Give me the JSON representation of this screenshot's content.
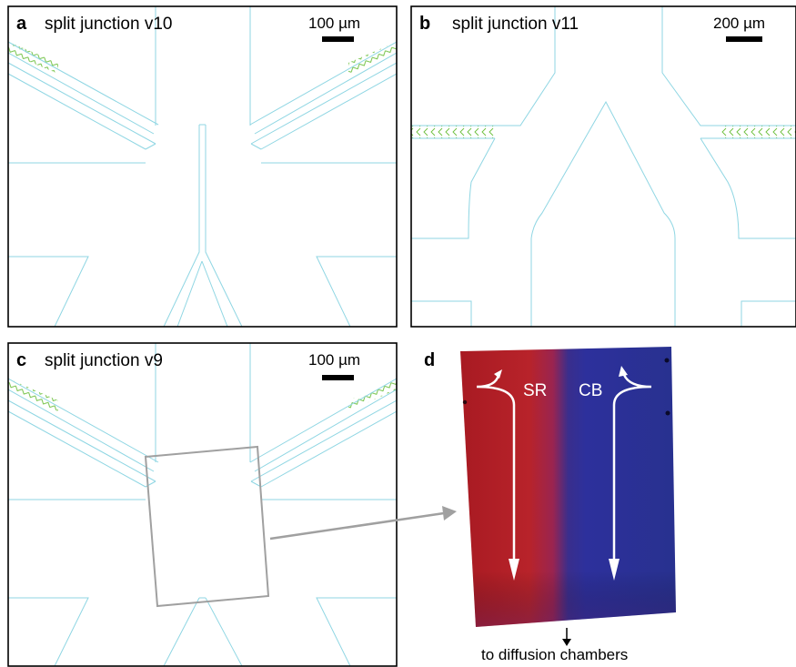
{
  "panels": {
    "a": {
      "letter": "a",
      "title": "split junction v10",
      "scale": "100 µm"
    },
    "b": {
      "letter": "b",
      "title": "split junction v11",
      "scale": "200 µm"
    },
    "c": {
      "letter": "c",
      "title": "split junction v9",
      "scale": "100 µm"
    },
    "d": {
      "letter": "d",
      "left_label": "SR",
      "right_label": "CB",
      "caption": "to diffusion chambers"
    }
  },
  "colors": {
    "channel_outline": "#8fd6e3",
    "herringbone": "#6cbf3c",
    "frame": "#000000",
    "zoom_box": "#a0a0a0",
    "sr_red": "#b41e23",
    "cb_blue": "#2b2f9a"
  }
}
